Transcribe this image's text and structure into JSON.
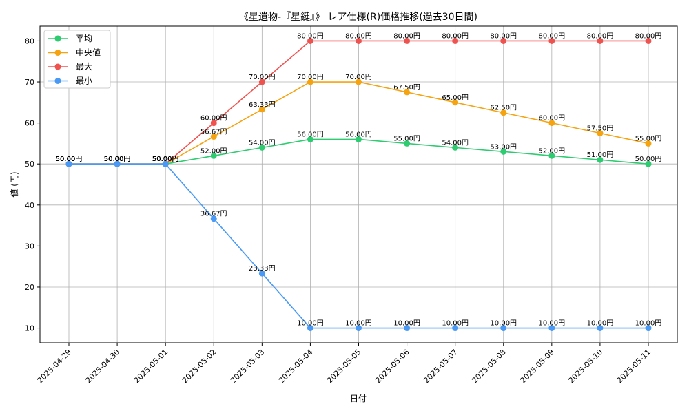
{
  "chart_data": {
    "type": "line",
    "title": "《星遺物-『星鍵』》 レア仕様(R)価格推移(過去30日間)",
    "xlabel": "日付",
    "ylabel": "値 (円)",
    "ylim": [
      6.4,
      83.6
    ],
    "yticks": [
      10,
      20,
      30,
      40,
      50,
      60,
      70,
      80
    ],
    "grid": true,
    "legend_position": "top-left",
    "label_suffix": "円",
    "categories": [
      "2025-04-29",
      "2025-04-30",
      "2025-05-01",
      "2025-05-02",
      "2025-05-03",
      "2025-05-04",
      "2025-05-05",
      "2025-05-06",
      "2025-05-07",
      "2025-05-08",
      "2025-05-09",
      "2025-05-10",
      "2025-05-11"
    ],
    "series": [
      {
        "name": "平均",
        "color": "#2ecc71",
        "values": [
          50,
          50,
          50,
          52,
          54,
          56,
          56,
          55,
          54,
          53,
          52,
          51,
          50
        ]
      },
      {
        "name": "中央値",
        "color": "#f5a30f",
        "values": [
          50,
          50,
          50,
          56.67,
          63.33,
          70,
          70,
          67.5,
          65,
          62.5,
          60,
          57.5,
          55
        ]
      },
      {
        "name": "最大",
        "color": "#ef5350",
        "values": [
          50,
          50,
          50,
          60,
          70,
          80,
          80,
          80,
          80,
          80,
          80,
          80,
          80
        ]
      },
      {
        "name": "最小",
        "color": "#4a9af5",
        "values": [
          50,
          50,
          50,
          36.67,
          23.33,
          10,
          10,
          10,
          10,
          10,
          10,
          10,
          10
        ]
      }
    ]
  }
}
